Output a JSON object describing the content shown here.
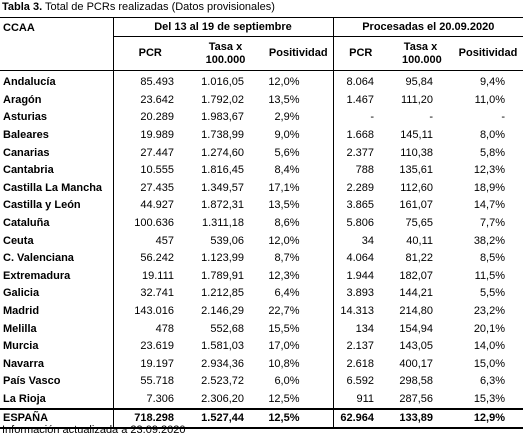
{
  "title": {
    "label": "Tabla 3.",
    "text": "Total de PCRs realizadas (Datos provisionales)"
  },
  "table": {
    "corner": "CCAA",
    "groups": [
      "Del 13 al 19 de septiembre",
      "Procesadas el 20.09.2020"
    ],
    "columns": [
      "PCR",
      "Tasa x 100.000",
      "Positividad",
      "PCR",
      "Tasa x 100.000",
      "Positividad"
    ],
    "rows": [
      [
        "Andalucía",
        "85.493",
        "1.016,05",
        "12,0%",
        "8.064",
        "95,84",
        "9,4%"
      ],
      [
        "Aragón",
        "23.642",
        "1.792,02",
        "13,5%",
        "1.467",
        "111,20",
        "11,0%"
      ],
      [
        "Asturias",
        "20.289",
        "1.983,67",
        "2,9%",
        "-",
        "-",
        "-"
      ],
      [
        "Baleares",
        "19.989",
        "1.738,99",
        "9,0%",
        "1.668",
        "145,11",
        "8,0%"
      ],
      [
        "Canarias",
        "27.447",
        "1.274,60",
        "5,6%",
        "2.377",
        "110,38",
        "5,8%"
      ],
      [
        "Cantabria",
        "10.555",
        "1.816,45",
        "8,4%",
        "788",
        "135,61",
        "12,3%"
      ],
      [
        "Castilla La Mancha",
        "27.435",
        "1.349,57",
        "17,1%",
        "2.289",
        "112,60",
        "18,9%"
      ],
      [
        "Castilla y León",
        "44.927",
        "1.872,31",
        "13,5%",
        "3.865",
        "161,07",
        "14,7%"
      ],
      [
        "Cataluña",
        "100.636",
        "1.311,18",
        "8,6%",
        "5.806",
        "75,65",
        "7,7%"
      ],
      [
        "Ceuta",
        "457",
        "539,06",
        "12,0%",
        "34",
        "40,11",
        "38,2%"
      ],
      [
        "C. Valenciana",
        "56.242",
        "1.123,99",
        "8,7%",
        "4.064",
        "81,22",
        "8,5%"
      ],
      [
        "Extremadura",
        "19.111",
        "1.789,91",
        "12,3%",
        "1.944",
        "182,07",
        "11,5%"
      ],
      [
        "Galicia",
        "32.741",
        "1.212,85",
        "6,4%",
        "3.893",
        "144,21",
        "5,5%"
      ],
      [
        "Madrid",
        "143.016",
        "2.146,29",
        "22,7%",
        "14.313",
        "214,80",
        "23,2%"
      ],
      [
        "Melilla",
        "478",
        "552,68",
        "15,5%",
        "134",
        "154,94",
        "20,1%"
      ],
      [
        "Murcia",
        "23.619",
        "1.581,03",
        "17,0%",
        "2.137",
        "143,05",
        "14,0%"
      ],
      [
        "Navarra",
        "19.197",
        "2.934,36",
        "10,8%",
        "2.618",
        "400,17",
        "15,0%"
      ],
      [
        "País Vasco",
        "55.718",
        "2.523,72",
        "6,0%",
        "6.592",
        "298,58",
        "6,3%"
      ],
      [
        "La Rioja",
        "7.306",
        "2.306,20",
        "12,5%",
        "911",
        "287,56",
        "15,3%"
      ]
    ],
    "total": [
      "ESPAÑA",
      "718.298",
      "1.527,44",
      "12,5%",
      "62.964",
      "133,89",
      "12,9%"
    ]
  },
  "footer": "Información actualizada a 23.09.2020"
}
